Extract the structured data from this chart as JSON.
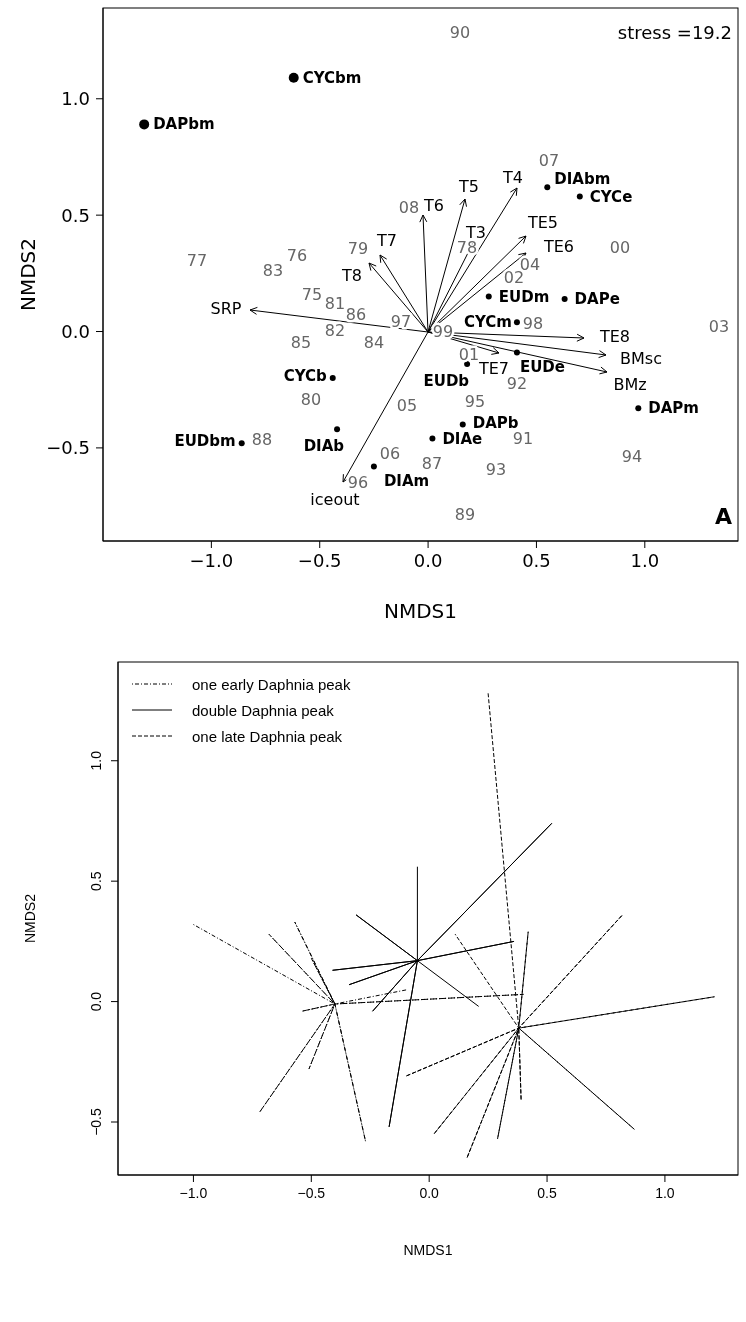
{
  "chart_data": [
    {
      "type": "scatter",
      "xlabel": "NMDS1",
      "ylabel": "NMDS2",
      "xlim": [
        -1.5,
        1.43
      ],
      "ylim": [
        -0.9,
        1.39
      ],
      "xticks": [
        {
          "value": -1,
          "label": "−1.0"
        },
        {
          "value": -0.5,
          "label": "−0.5"
        },
        {
          "value": 0,
          "label": "0.0"
        },
        {
          "value": 0.5,
          "label": "0.5"
        },
        {
          "value": 1,
          "label": "1.0"
        }
      ],
      "yticks": [
        {
          "value": -0.5,
          "label": "−0.5"
        },
        {
          "value": 0,
          "label": "0.0"
        },
        {
          "value": 0.5,
          "label": "0.5"
        },
        {
          "value": 1,
          "label": "1.0"
        }
      ],
      "annotations": [
        "stress =19.2",
        "A",
        "SRP",
        "T8",
        "T7",
        "T6",
        "T5",
        "T3",
        "T4",
        "TE5",
        "TE6",
        "TE8",
        "BMsc",
        "BMz",
        "TE7",
        "iceout",
        "90",
        "07",
        "08",
        "79",
        "77",
        "83",
        "76",
        "78",
        "00",
        "04",
        "02",
        "75",
        "81",
        "86",
        "97",
        "82",
        "85",
        "84",
        "99",
        "01",
        "98",
        "03",
        "80",
        "05",
        "92",
        "95",
        "88",
        "91",
        "06",
        "87",
        "93",
        "94",
        "96",
        "89"
      ],
      "series": [
        {
          "marker": "circle",
          "color": "#000000",
          "x": [
            -1.31,
            -0.62
          ],
          "values": [
            0.89,
            1.09
          ],
          "value_labels": [
            "DAPbm",
            "CYCbm"
          ]
        },
        {
          "marker": "circle",
          "color": "#000000",
          "x": [
            0.55,
            0.7,
            0.28,
            0.63,
            0.41,
            0.41,
            0.18,
            0.97,
            0.16,
            0.02,
            -0.44,
            -0.42,
            -0.86,
            -0.25
          ],
          "values": [
            0.62,
            0.58,
            0.15,
            0.14,
            0.04,
            -0.09,
            -0.14,
            -0.33,
            -0.4,
            -0.46,
            -0.2,
            -0.42,
            -0.48,
            -0.58
          ],
          "value_labels": [
            "DIAbm",
            "CYCe",
            "EUDm",
            "DAPe",
            "CYCm",
            "EUDe",
            "EUDb",
            "DAPm",
            "DAPb",
            "DIAe",
            "CYCb",
            "DIAb",
            "EUDbm",
            "DIAm"
          ]
        }
      ]
    },
    {
      "type": "line",
      "xlabel": "NMDS1",
      "ylabel": "NMDS2",
      "xlim": [
        -1.32,
        1.31
      ],
      "ylim": [
        -0.72,
        1.41
      ],
      "legend": "top left",
      "xticks": [
        {
          "value": -1,
          "label": "−1.0"
        },
        {
          "value": -0.5,
          "label": "−0.5"
        },
        {
          "value": 0,
          "label": "0.0"
        },
        {
          "value": 0.5,
          "label": "0.5"
        },
        {
          "value": 1,
          "label": "1.0"
        }
      ],
      "yticks": [
        {
          "value": -0.5,
          "label": "−0.5"
        },
        {
          "value": 0,
          "label": "0.0"
        },
        {
          "value": 0.5,
          "label": "0.5"
        },
        {
          "value": 1,
          "label": "1.0"
        }
      ],
      "series": [
        {
          "name": "one early Daphnia peak",
          "color": "#000000",
          "line_style": "dashdot",
          "x": [
            -1.0,
            -0.4,
            -0.68,
            -0.4,
            -0.57,
            -0.4,
            -0.5,
            -0.4,
            -0.54,
            -0.4,
            -0.72,
            -0.4,
            -0.51,
            -0.4,
            -0.27,
            -0.4,
            0.4,
            -0.4,
            -0.09
          ],
          "values": [
            0.32,
            -0.01,
            0.28,
            -0.01,
            0.33,
            -0.01,
            0.18,
            -0.01,
            -0.04,
            -0.01,
            -0.46,
            -0.01,
            -0.28,
            -0.01,
            -0.58,
            -0.01,
            0.03,
            -0.01,
            0.05
          ]
        },
        {
          "name": "double Daphnia peak",
          "color": "#000000",
          "line_style": "solid",
          "x": [
            -0.05,
            -0.05,
            -0.31,
            -0.05,
            -0.41,
            -0.05,
            -0.34,
            -0.05,
            -0.24,
            -0.05,
            -0.17,
            -0.05,
            0.52,
            -0.05,
            0.36,
            -0.05,
            0.21
          ],
          "values": [
            0.56,
            0.17,
            0.36,
            0.17,
            0.13,
            0.17,
            0.07,
            0.17,
            -0.04,
            0.17,
            -0.52,
            0.17,
            0.74,
            0.17,
            0.25,
            0.17,
            -0.02
          ]
        },
        {
          "name": "one late Daphnia peak",
          "color": "#000000",
          "line_style": "dashed",
          "x": [
            0.25,
            0.38,
            0.42,
            0.38,
            0.82,
            0.38,
            1.21,
            0.38,
            0.87,
            0.38,
            0.39,
            0.38,
            0.29,
            0.38,
            0.16,
            0.38,
            0.02,
            0.38,
            -0.1,
            0.38,
            0.11
          ],
          "values": [
            1.28,
            -0.11,
            0.29,
            -0.11,
            0.36,
            -0.11,
            0.02,
            -0.11,
            -0.53,
            -0.11,
            -0.41,
            -0.11,
            -0.57,
            -0.11,
            -0.65,
            -0.11,
            -0.55,
            -0.11,
            -0.31,
            -0.11,
            0.28
          ]
        }
      ]
    }
  ]
}
